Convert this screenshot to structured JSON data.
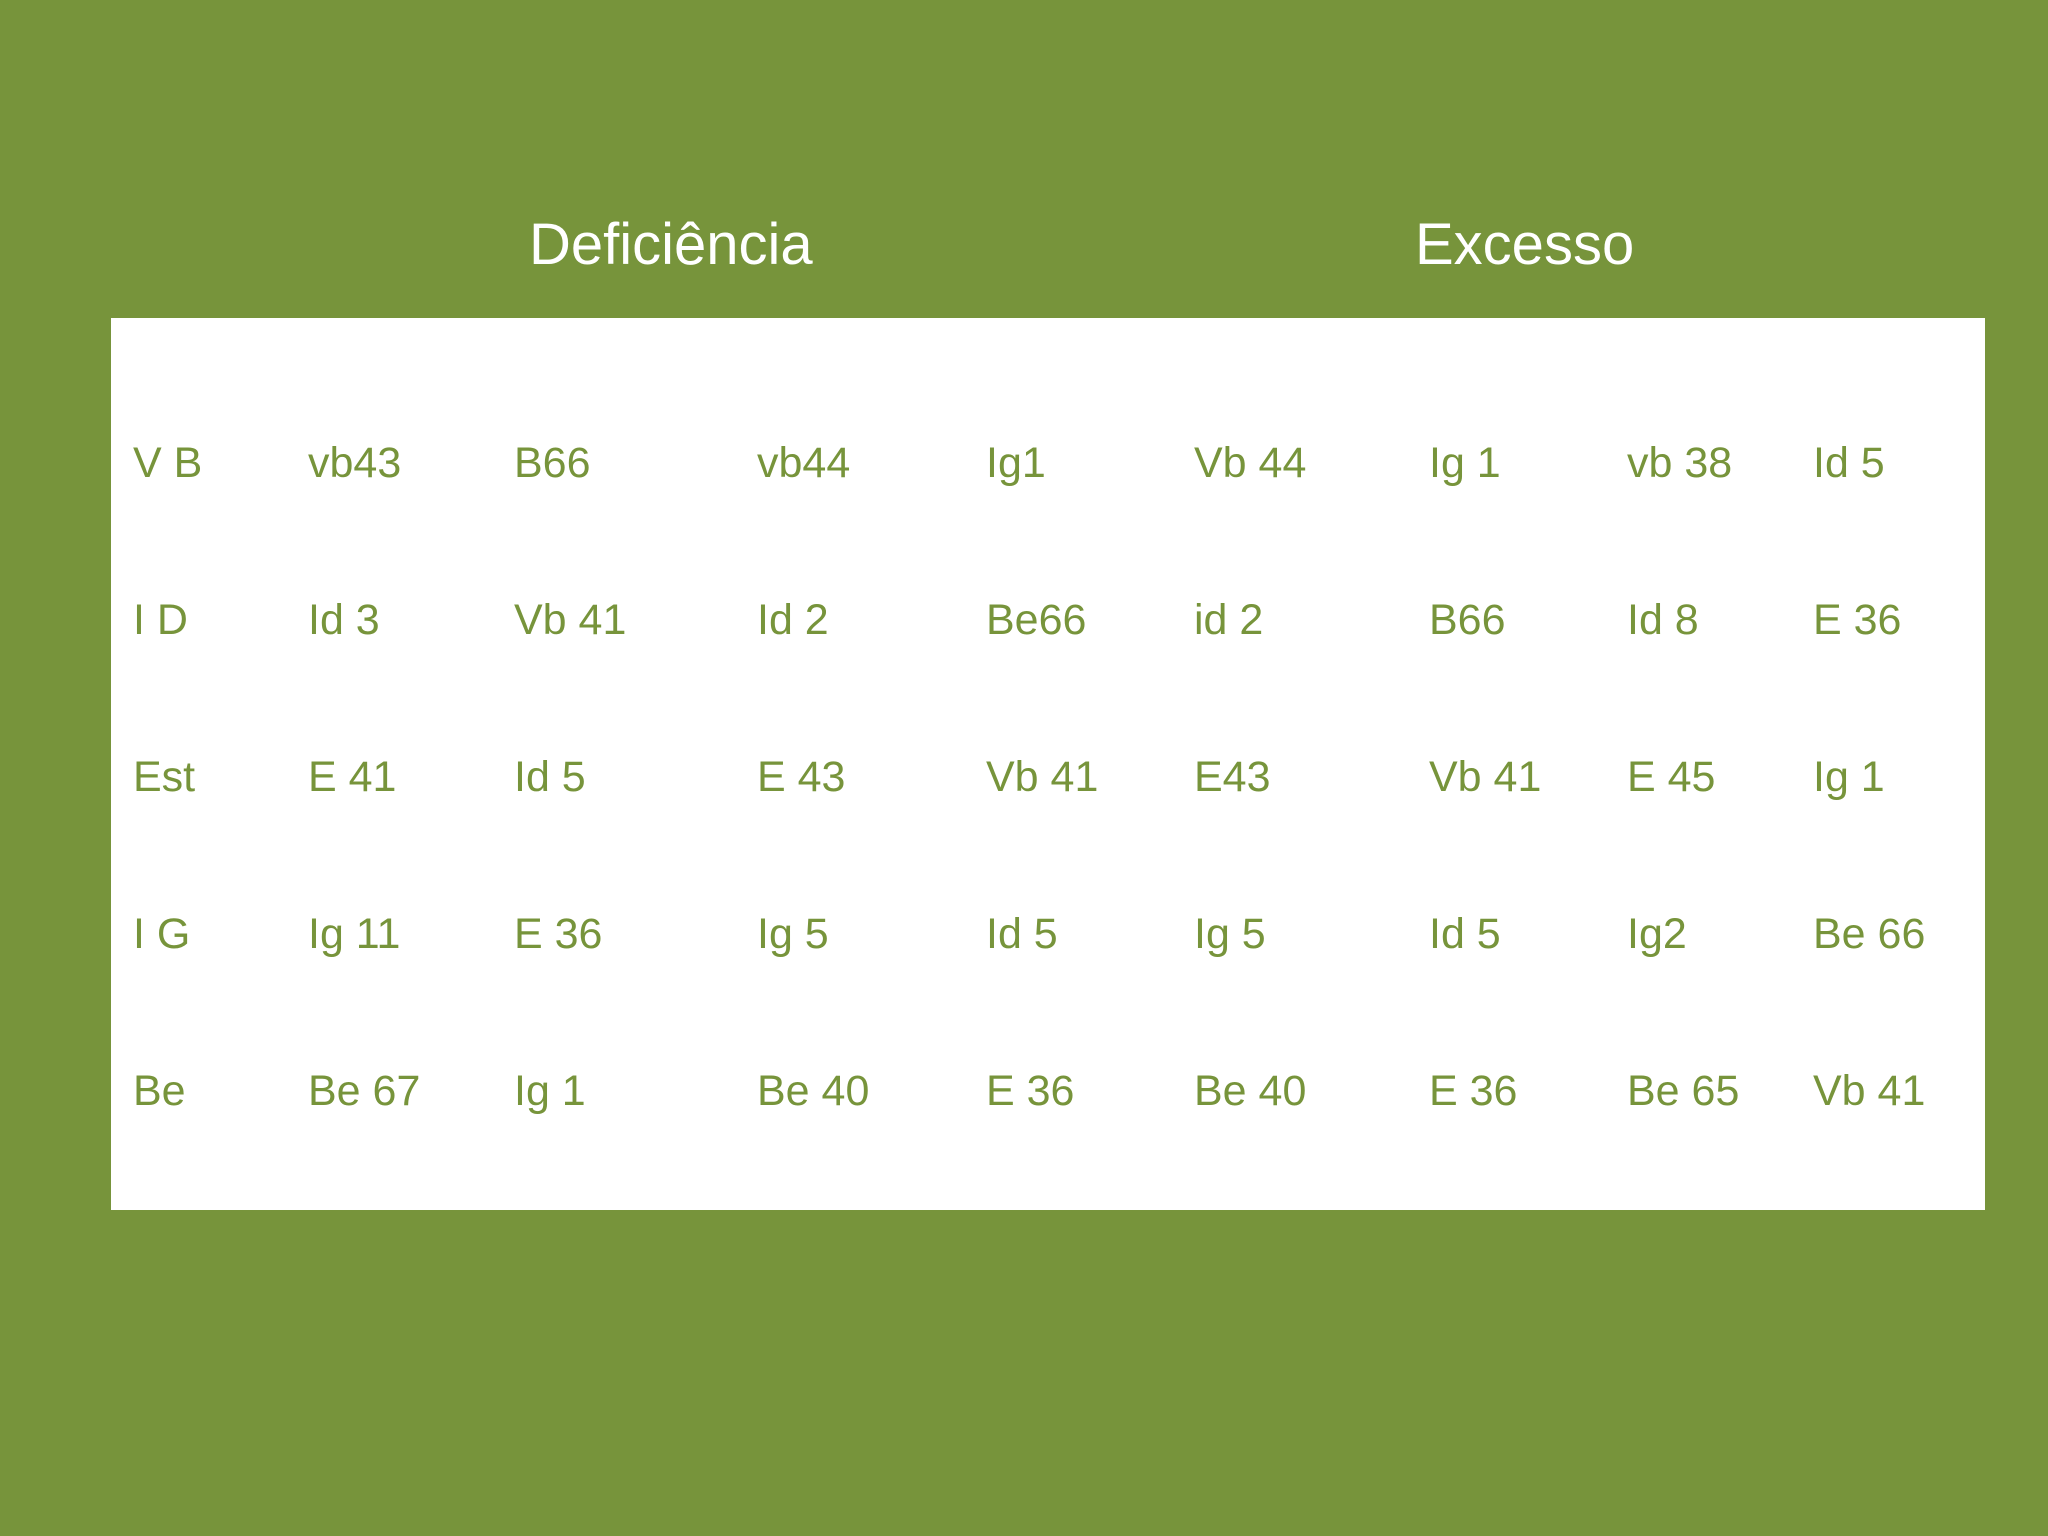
{
  "headings": {
    "deficiencia": "Deficiência",
    "excesso": "Excesso"
  },
  "table": {
    "rows": [
      [
        "V B",
        "vb43",
        "B66",
        "vb44",
        "Ig1",
        "Vb 44",
        "Ig 1",
        "vb 38",
        "Id 5"
      ],
      [
        "I D",
        "Id 3",
        "Vb 41",
        "Id 2",
        "Be66",
        "id 2",
        "B66",
        "Id 8",
        "E 36"
      ],
      [
        "Est",
        "E 41",
        "Id 5",
        "E 43",
        "Vb 41",
        "E43",
        "Vb 41",
        "E 45",
        "Ig 1"
      ],
      [
        "I G",
        "Ig 11",
        "E 36",
        "Ig 5",
        "Id 5",
        "Ig 5",
        "Id  5",
        "Ig2",
        "Be 66"
      ],
      [
        "Be",
        "Be 67",
        "Ig 1",
        "Be 40",
        "E 36",
        "Be 40",
        "E 36",
        "Be 65",
        "Vb 41"
      ]
    ]
  },
  "colors": {
    "background": "#77943b",
    "panel": "#ffffff",
    "text_on_panel": "#77943b",
    "heading_text": "#ffffff"
  }
}
